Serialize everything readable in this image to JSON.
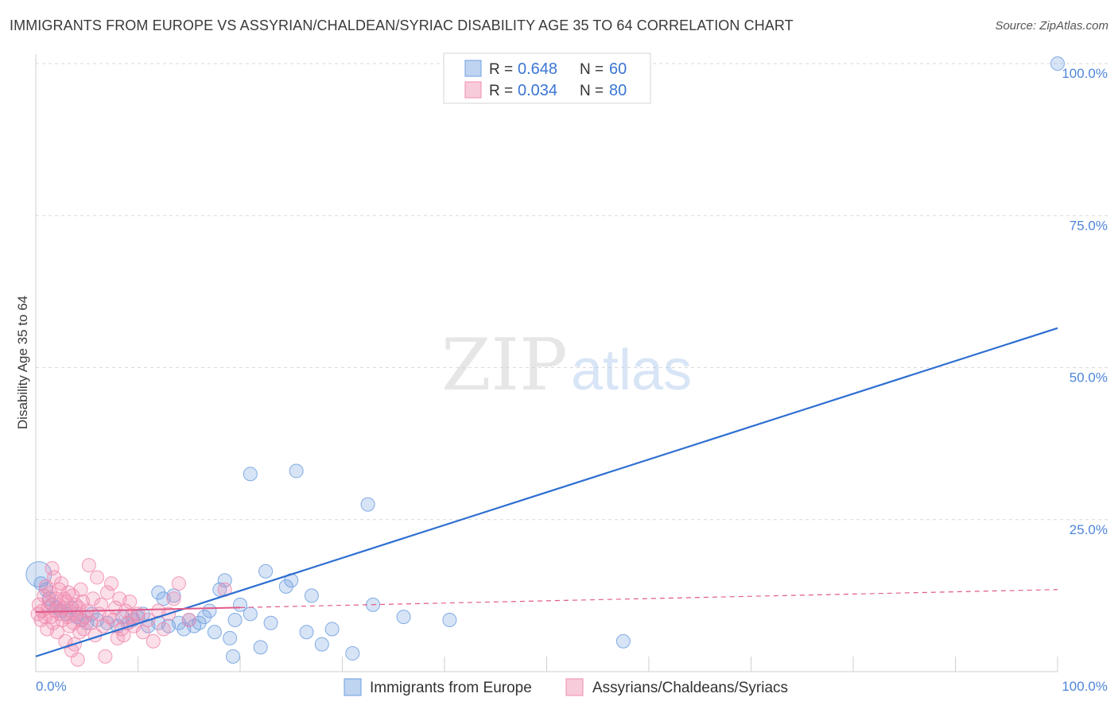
{
  "header": {
    "title": "IMMIGRANTS FROM EUROPE VS ASSYRIAN/CHALDEAN/SYRIAC DISABILITY AGE 35 TO 64 CORRELATION CHART",
    "source": "Source: ZipAtlas.com"
  },
  "watermark": {
    "zip": "ZIP",
    "atlas": "atlas"
  },
  "chart_data": {
    "type": "scatter",
    "title": "IMMIGRANTS FROM EUROPE VS ASSYRIAN/CHALDEAN/SYRIAC DISABILITY AGE 35 TO 64 CORRELATION CHART",
    "xlabel": "",
    "ylabel": "Disability Age 35 to 64",
    "xlim": [
      0,
      100
    ],
    "ylim": [
      0,
      100
    ],
    "x_tick_labels": [
      {
        "value": 0,
        "label": "0.0%"
      },
      {
        "value": 100,
        "label": "100.0%"
      }
    ],
    "y_tick_labels": [
      {
        "value": 25,
        "label": "25.0%"
      },
      {
        "value": 50,
        "label": "50.0%"
      },
      {
        "value": 75,
        "label": "75.0%"
      },
      {
        "value": 100,
        "label": "100.0%"
      }
    ],
    "grid": true,
    "legend_position": "top-center",
    "series": [
      {
        "name": "Immigrants from Europe",
        "color": "#6f9fe0",
        "line_color": "#2e6fd1",
        "R": "0.648",
        "N": "60",
        "trend": {
          "x": [
            0,
            100
          ],
          "y": [
            2.5,
            56.5
          ],
          "dashed_after": null
        },
        "points": [
          [
            0.3,
            16.0
          ],
          [
            0.5,
            14.5
          ],
          [
            1.0,
            13.5
          ],
          [
            1.3,
            12.0
          ],
          [
            1.6,
            11.0
          ],
          [
            2.0,
            10.5
          ],
          [
            2.5,
            10.0
          ],
          [
            3.0,
            9.5
          ],
          [
            3.5,
            10.5
          ],
          [
            4.0,
            9.0
          ],
          [
            4.5,
            8.5
          ],
          [
            5.0,
            8.0
          ],
          [
            5.5,
            9.5
          ],
          [
            6.0,
            8.5
          ],
          [
            7.0,
            8.0
          ],
          [
            8.0,
            7.5
          ],
          [
            8.5,
            9.0
          ],
          [
            9.0,
            8.0
          ],
          [
            9.5,
            8.5
          ],
          [
            10.0,
            9.0
          ],
          [
            10.5,
            9.5
          ],
          [
            11.0,
            7.5
          ],
          [
            12.0,
            13.0
          ],
          [
            12.5,
            12.0
          ],
          [
            12.0,
            8.0
          ],
          [
            13.0,
            7.5
          ],
          [
            13.5,
            12.5
          ],
          [
            14.0,
            8.0
          ],
          [
            14.5,
            7.0
          ],
          [
            15.0,
            8.5
          ],
          [
            15.5,
            7.5
          ],
          [
            16.0,
            8.0
          ],
          [
            16.5,
            9.0
          ],
          [
            17.0,
            10.0
          ],
          [
            17.5,
            6.5
          ],
          [
            18.0,
            13.5
          ],
          [
            18.5,
            15.0
          ],
          [
            19.0,
            5.5
          ],
          [
            19.3,
            2.5
          ],
          [
            19.5,
            8.5
          ],
          [
            20.0,
            11.0
          ],
          [
            21.0,
            9.5
          ],
          [
            21.0,
            32.5
          ],
          [
            22.0,
            4.0
          ],
          [
            22.5,
            16.5
          ],
          [
            23.0,
            8.0
          ],
          [
            24.5,
            14.0
          ],
          [
            25.0,
            15.0
          ],
          [
            25.5,
            33.0
          ],
          [
            26.5,
            6.5
          ],
          [
            27.0,
            12.5
          ],
          [
            28.0,
            4.5
          ],
          [
            29.0,
            7.0
          ],
          [
            31.0,
            3.0
          ],
          [
            32.5,
            27.5
          ],
          [
            33.0,
            11.0
          ],
          [
            36.0,
            9.0
          ],
          [
            40.5,
            8.5
          ],
          [
            57.5,
            5.0
          ],
          [
            100.0,
            100.0
          ]
        ]
      },
      {
        "name": "Assyrians/Chaldeans/Syriacs",
        "color": "#f08cb0",
        "line_color": "#e05a89",
        "R": "0.034",
        "N": "80",
        "trend": {
          "x": [
            0,
            100
          ],
          "y": [
            9.8,
            13.5
          ],
          "dashed_after": 20
        },
        "points": [
          [
            0.2,
            9.5
          ],
          [
            0.3,
            11.0
          ],
          [
            0.5,
            8.5
          ],
          [
            0.6,
            10.0
          ],
          [
            0.8,
            12.5
          ],
          [
            0.9,
            9.0
          ],
          [
            1.0,
            14.0
          ],
          [
            1.1,
            7.0
          ],
          [
            1.2,
            10.5
          ],
          [
            1.3,
            11.5
          ],
          [
            1.4,
            13.0
          ],
          [
            1.5,
            9.0
          ],
          [
            1.6,
            17.0
          ],
          [
            1.7,
            8.0
          ],
          [
            1.8,
            15.5
          ],
          [
            1.9,
            10.0
          ],
          [
            2.0,
            12.0
          ],
          [
            2.1,
            6.5
          ],
          [
            2.2,
            11.0
          ],
          [
            2.3,
            13.5
          ],
          [
            2.4,
            9.5
          ],
          [
            2.5,
            14.5
          ],
          [
            2.6,
            8.5
          ],
          [
            2.7,
            10.5
          ],
          [
            2.8,
            12.0
          ],
          [
            2.9,
            5.0
          ],
          [
            3.0,
            11.5
          ],
          [
            3.1,
            9.0
          ],
          [
            3.2,
            13.0
          ],
          [
            3.3,
            7.5
          ],
          [
            3.4,
            10.0
          ],
          [
            3.5,
            3.5
          ],
          [
            3.6,
            12.5
          ],
          [
            3.7,
            8.0
          ],
          [
            3.8,
            4.5
          ],
          [
            3.9,
            11.0
          ],
          [
            4.0,
            9.5
          ],
          [
            4.1,
            2.0
          ],
          [
            4.2,
            10.5
          ],
          [
            4.3,
            6.5
          ],
          [
            4.4,
            13.5
          ],
          [
            4.5,
            8.5
          ],
          [
            4.6,
            11.5
          ],
          [
            4.7,
            7.0
          ],
          [
            4.8,
            9.0
          ],
          [
            5.0,
            10.0
          ],
          [
            5.2,
            17.5
          ],
          [
            5.4,
            8.0
          ],
          [
            5.6,
            12.0
          ],
          [
            5.8,
            6.0
          ],
          [
            6.0,
            15.5
          ],
          [
            6.2,
            9.5
          ],
          [
            6.4,
            11.0
          ],
          [
            6.6,
            7.5
          ],
          [
            6.8,
            2.5
          ],
          [
            7.0,
            13.0
          ],
          [
            7.2,
            9.0
          ],
          [
            7.4,
            14.5
          ],
          [
            7.6,
            8.5
          ],
          [
            7.8,
            10.5
          ],
          [
            8.0,
            5.5
          ],
          [
            8.2,
            12.0
          ],
          [
            8.4,
            7.0
          ],
          [
            8.6,
            6.0
          ],
          [
            8.8,
            10.0
          ],
          [
            9.0,
            8.0
          ],
          [
            9.2,
            11.5
          ],
          [
            9.4,
            9.0
          ],
          [
            9.6,
            7.5
          ],
          [
            10.0,
            9.5
          ],
          [
            10.5,
            6.5
          ],
          [
            11.0,
            8.5
          ],
          [
            11.5,
            5.0
          ],
          [
            12.0,
            10.0
          ],
          [
            12.5,
            7.0
          ],
          [
            13.0,
            9.5
          ],
          [
            13.5,
            12.0
          ],
          [
            14.0,
            14.5
          ],
          [
            15.0,
            8.5
          ],
          [
            18.5,
            13.5
          ]
        ]
      }
    ]
  }
}
